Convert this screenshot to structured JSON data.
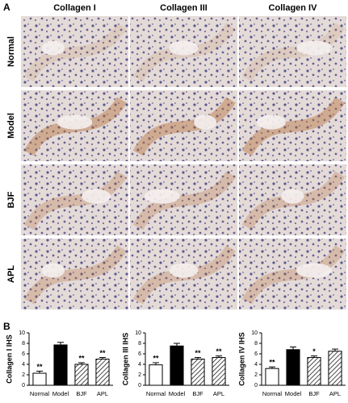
{
  "panel_labels": [
    "A",
    "B"
  ],
  "images": {
    "columns": [
      "Collagen I",
      "Collagen III",
      "Collagen IV"
    ],
    "rows": [
      "Normal",
      "Model",
      "BJF",
      "APL"
    ]
  },
  "chart_data": [
    {
      "type": "bar",
      "ylabel": "Collagen I IHS",
      "categories": [
        "Normal",
        "Model",
        "BJF",
        "APL"
      ],
      "values": [
        2.3,
        7.7,
        4.0,
        5.0
      ],
      "errors": [
        0.4,
        0.5,
        0.3,
        0.3
      ],
      "annotations": [
        "**",
        null,
        "**",
        "**"
      ],
      "bar_fills": [
        "#ffffff",
        "#000000",
        "hatch",
        "hatch"
      ],
      "ylim": [
        0,
        10
      ],
      "yticks": [
        0,
        2,
        4,
        6,
        8,
        10
      ]
    },
    {
      "type": "bar",
      "ylabel": "Collagen III IHS",
      "categories": [
        "Normal",
        "Model",
        "BJF",
        "APL"
      ],
      "values": [
        3.9,
        7.5,
        5.0,
        5.3
      ],
      "errors": [
        0.4,
        0.5,
        0.3,
        0.3
      ],
      "annotations": [
        "**",
        null,
        "**",
        "**"
      ],
      "bar_fills": [
        "#ffffff",
        "#000000",
        "hatch",
        "hatch"
      ],
      "ylim": [
        0,
        10
      ],
      "yticks": [
        0,
        2,
        4,
        6,
        8,
        10
      ]
    },
    {
      "type": "bar",
      "ylabel": "Collagen IV IHS",
      "categories": [
        "Normal",
        "Model",
        "BJF",
        "APL"
      ],
      "values": [
        3.2,
        6.8,
        5.3,
        6.5
      ],
      "errors": [
        0.3,
        0.5,
        0.3,
        0.4
      ],
      "annotations": [
        "**",
        null,
        "*",
        null
      ],
      "bar_fills": [
        "#ffffff",
        "#000000",
        "hatch",
        "hatch"
      ],
      "ylim": [
        0,
        10
      ],
      "yticks": [
        0,
        2,
        4,
        6,
        8,
        10
      ]
    }
  ]
}
